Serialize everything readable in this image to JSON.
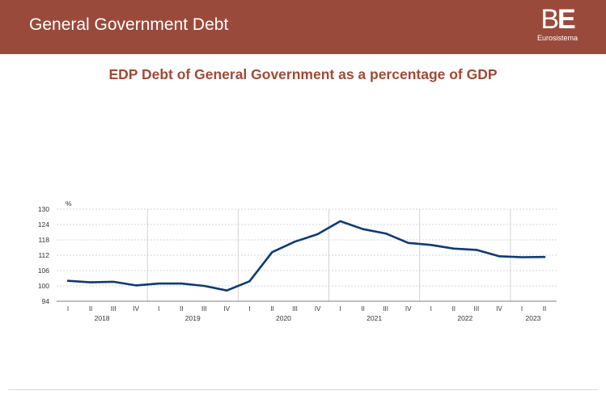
{
  "header": {
    "title": "General Government Debt",
    "logo_mark_b": "B",
    "logo_mark_e": "E",
    "logo_text": "Eurosistema"
  },
  "colors": {
    "header_bg": "#9a4a3b",
    "title": "#a04a37",
    "line": "#0d3a73"
  },
  "chart_data": {
    "type": "line",
    "title": "EDP Debt of General Government as a percentage of GDP",
    "ylabel": "%",
    "ylim": [
      94,
      130
    ],
    "yticks": [
      94,
      100,
      106,
      112,
      118,
      124,
      130
    ],
    "grid": true,
    "quarter_labels": [
      "I",
      "II",
      "III",
      "IV",
      "I",
      "II",
      "III",
      "IV",
      "I",
      "II",
      "III",
      "IV",
      "I",
      "II",
      "III",
      "IV",
      "I",
      "II",
      "III",
      "IV",
      "I",
      "II"
    ],
    "years": [
      {
        "label": "2018",
        "start": 0,
        "end": 3
      },
      {
        "label": "2019",
        "start": 4,
        "end": 7
      },
      {
        "label": "2020",
        "start": 8,
        "end": 11
      },
      {
        "label": "2021",
        "start": 12,
        "end": 15
      },
      {
        "label": "2022",
        "start": 16,
        "end": 19
      },
      {
        "label": "2023",
        "start": 20,
        "end": 21
      }
    ],
    "series": [
      {
        "values": [
          102.0,
          101.4,
          101.6,
          100.2,
          100.9,
          100.9,
          100.0,
          98.2,
          101.8,
          113.2,
          117.3,
          120.2,
          125.3,
          122.2,
          120.5,
          116.8,
          116.0,
          114.6,
          114.1,
          111.6,
          111.2,
          111.3
        ]
      }
    ]
  }
}
